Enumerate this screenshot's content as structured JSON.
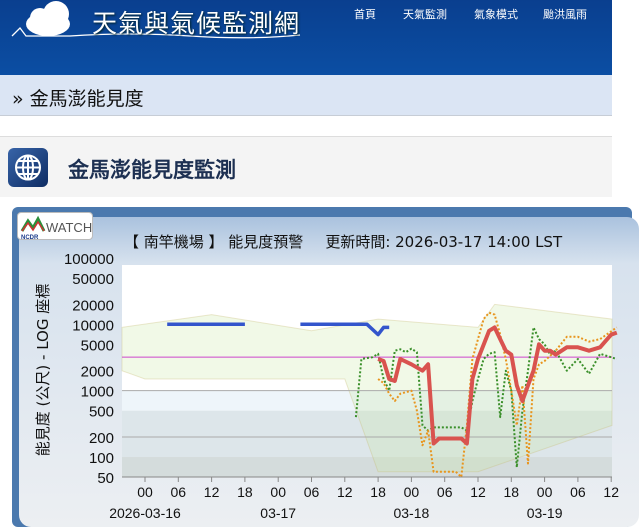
{
  "header": {
    "site_title": "天氣與氣候監測網",
    "nav": [
      "首頁",
      "天氣監測",
      "氣象模式",
      "颱洪風雨"
    ]
  },
  "breadcrumb": "» 金馬澎能見度",
  "section": {
    "title": "金馬澎能見度監測",
    "icon": "globe-icon"
  },
  "chart": {
    "logo_text": "WATCH",
    "logo_sub": "NCDR",
    "station": "【 南竿機場 】 能見度預警",
    "updated": "更新時間: 2026-03-17 14:00 LST"
  },
  "chart_data": {
    "type": "line",
    "ylabel": "能見度 (公尺) - LOG 座標",
    "yscale": "log",
    "ylim": [
      50,
      100000
    ],
    "yticks": [
      "100000",
      "50000",
      "20000",
      "10000",
      "5000",
      "2000",
      "1000",
      "500",
      "200",
      "100",
      "50"
    ],
    "xticks": [
      "00",
      "06",
      "12",
      "18",
      "00",
      "06",
      "12",
      "18",
      "00",
      "06",
      "12",
      "18",
      "00",
      "06",
      "12"
    ],
    "xdates": [
      "2026-03-16",
      "03-17",
      "03-18",
      "03-19"
    ],
    "threshold": 3200,
    "colors": {
      "main": "#d9534f",
      "blue": "#3355cc",
      "green": "#3a8f2a",
      "orange": "#e8951e",
      "threshold": "#cc44cc"
    },
    "series": [
      {
        "key": "blue",
        "style": "solid",
        "segments": [
          [
            [
              "03-16 04",
              10000
            ],
            [
              "03-16 18",
              10000
            ]
          ],
          [
            [
              "03-17 04",
              10000
            ],
            [
              "03-17 16",
              10000
            ],
            [
              "03-17 18",
              7000
            ],
            [
              "03-17 19",
              9000
            ],
            [
              "03-17 20",
              9000
            ]
          ]
        ]
      },
      {
        "key": "green",
        "style": "dotted",
        "segments": [
          [
            [
              "03-17 14",
              400
            ],
            [
              "03-17 15",
              3000
            ],
            [
              "03-17 17",
              3200
            ],
            [
              "03-17 18",
              3600
            ],
            [
              "03-17 19",
              1500
            ],
            [
              "03-17 20",
              1000
            ],
            [
              "03-17 21",
              4000
            ],
            [
              "03-17 22",
              4200
            ],
            [
              "03-17 23",
              3800
            ],
            [
              "03-18 00",
              4300
            ],
            [
              "03-18 01",
              3800
            ],
            [
              "03-18 02",
              300
            ],
            [
              "03-18 03",
              250
            ],
            [
              "03-18 04",
              280
            ],
            [
              "03-18 09",
              280
            ],
            [
              "03-18 10",
              250
            ],
            [
              "03-18 11",
              700
            ],
            [
              "03-18 12",
              1500
            ],
            [
              "03-18 13",
              3000
            ],
            [
              "03-18 14",
              3600
            ],
            [
              "03-18 15",
              3800
            ],
            [
              "03-18 16",
              400
            ],
            [
              "03-18 17",
              2000
            ],
            [
              "03-18 18",
              1000
            ],
            [
              "03-18 19",
              70
            ],
            [
              "03-18 20",
              500
            ],
            [
              "03-18 21",
              2000
            ],
            [
              "03-18 22",
              9000
            ],
            [
              "03-18 23",
              6000
            ],
            [
              "03-19 00",
              5000
            ],
            [
              "03-19 01",
              3500
            ],
            [
              "03-19 02",
              4000
            ],
            [
              "03-19 04",
              2000
            ],
            [
              "03-19 06",
              3000
            ],
            [
              "03-19 08",
              1800
            ],
            [
              "03-19 10",
              3600
            ],
            [
              "03-19 13",
              3000
            ]
          ]
        ]
      },
      {
        "key": "orange",
        "style": "dotted",
        "segments": [
          [
            [
              "03-17 18",
              1500
            ],
            [
              "03-17 19",
              1300
            ],
            [
              "03-17 20",
              900
            ],
            [
              "03-17 21",
              700
            ],
            [
              "03-17 22",
              900
            ],
            [
              "03-18 00",
              1000
            ],
            [
              "03-18 01",
              500
            ],
            [
              "03-18 02",
              150
            ],
            [
              "03-18 03",
              250
            ],
            [
              "03-18 04",
              60
            ],
            [
              "03-18 08",
              60
            ],
            [
              "03-18 09",
              50
            ],
            [
              "03-18 10",
              300
            ],
            [
              "03-18 11",
              3000
            ],
            [
              "03-18 12",
              6000
            ],
            [
              "03-18 13",
              12000
            ],
            [
              "03-18 14",
              15000
            ],
            [
              "03-18 15",
              14000
            ],
            [
              "03-18 16",
              7000
            ],
            [
              "03-18 17",
              3000
            ],
            [
              "03-18 18",
              1000
            ],
            [
              "03-18 19",
              300
            ],
            [
              "03-18 20",
              1200
            ],
            [
              "03-18 21",
              80
            ],
            [
              "03-18 22",
              1500
            ],
            [
              "03-18 23",
              2500
            ],
            [
              "03-19 00",
              2800
            ],
            [
              "03-19 02",
              4000
            ],
            [
              "03-19 04",
              6500
            ],
            [
              "03-19 06",
              6500
            ],
            [
              "03-19 08",
              5500
            ],
            [
              "03-19 10",
              6000
            ],
            [
              "03-19 13",
              9000
            ]
          ]
        ]
      },
      {
        "key": "main",
        "style": "solid",
        "segments": [
          [
            [
              "03-17 18",
              3000
            ],
            [
              "03-17 19",
              2800
            ],
            [
              "03-17 20",
              1500
            ],
            [
              "03-17 21",
              1400
            ],
            [
              "03-17 22",
              3000
            ],
            [
              "03-18 00",
              2500
            ],
            [
              "03-18 02",
              2000
            ],
            [
              "03-18 03",
              2500
            ],
            [
              "03-18 04",
              160
            ],
            [
              "03-18 05",
              190
            ],
            [
              "03-18 09",
              190
            ],
            [
              "03-18 10",
              160
            ],
            [
              "03-18 11",
              1500
            ],
            [
              "03-18 12",
              3000
            ],
            [
              "03-18 14",
              8000
            ],
            [
              "03-18 15",
              9000
            ],
            [
              "03-18 16",
              6000
            ],
            [
              "03-18 17",
              4000
            ],
            [
              "03-18 18",
              3500
            ],
            [
              "03-18 19",
              1200
            ],
            [
              "03-18 20",
              700
            ],
            [
              "03-18 21",
              1200
            ],
            [
              "03-18 22",
              2000
            ],
            [
              "03-18 23",
              5000
            ],
            [
              "03-19 00",
              4000
            ],
            [
              "03-19 01",
              4000
            ],
            [
              "03-19 02",
              3500
            ],
            [
              "03-19 04",
              4500
            ],
            [
              "03-19 06",
              4500
            ],
            [
              "03-19 08",
              4000
            ],
            [
              "03-19 10",
              4500
            ],
            [
              "03-19 12",
              7000
            ],
            [
              "03-19 13",
              7500
            ]
          ]
        ]
      }
    ]
  }
}
